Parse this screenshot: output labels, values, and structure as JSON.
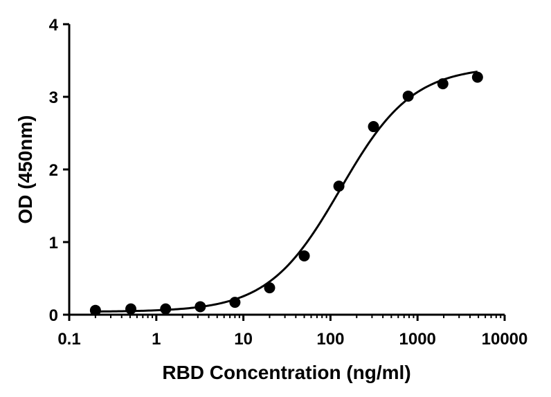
{
  "chart_data": {
    "type": "scatter",
    "title": "",
    "xlabel": "RBD Concentration (ng/ml)",
    "ylabel": "OD (450nm)",
    "x_scale": "log",
    "xlim": [
      0.1,
      10000
    ],
    "ylim": [
      0,
      4
    ],
    "grid": false,
    "x_ticks": [
      0.1,
      1,
      10,
      100,
      1000,
      10000
    ],
    "x_tick_labels": [
      "0.1",
      "1",
      "10",
      "100",
      "1000",
      "10000"
    ],
    "y_ticks": [
      0,
      1,
      2,
      3,
      4
    ],
    "y_tick_labels": [
      "0",
      "1",
      "2",
      "3",
      "4"
    ],
    "series": [
      {
        "x": [
          0.2,
          0.51,
          1.28,
          3.2,
          8,
          20,
          50,
          125,
          312,
          781,
          1953,
          4883
        ],
        "y": [
          0.06,
          0.08,
          0.08,
          0.11,
          0.17,
          0.37,
          0.81,
          1.77,
          2.59,
          3.01,
          3.18,
          3.27
        ]
      }
    ],
    "fit_curve": {
      "model": "4PL",
      "bottom": 0.04,
      "top": 3.42,
      "ec50": 130,
      "hill": 1.05
    },
    "colors": {
      "points": "#000000",
      "curve": "#000000",
      "axes": "#000000"
    }
  }
}
